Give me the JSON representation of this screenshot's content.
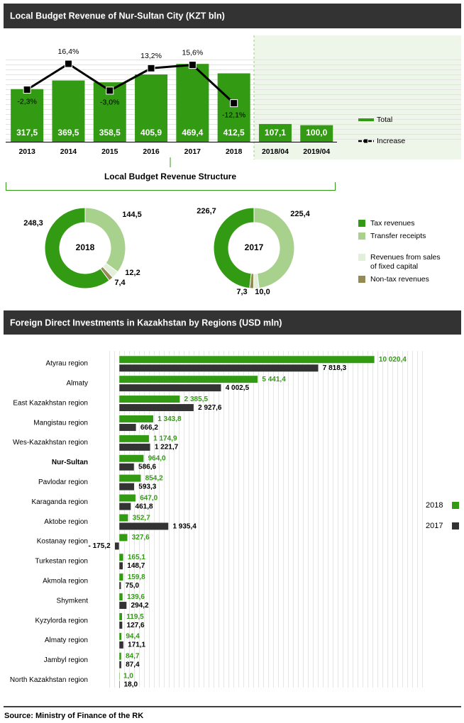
{
  "chart_data": [
    {
      "type": "bar_line",
      "title": "Local Budget Revenue of Nur-Sultan City (KZT  bln)",
      "categories": [
        "2013",
        "2014",
        "2015",
        "2016",
        "2017",
        "2018",
        "2018/04",
        "2019/04"
      ],
      "series": [
        {
          "name": "Total",
          "type": "bar",
          "color": "#339a14",
          "values": [
            317.5,
            369.5,
            358.5,
            405.9,
            469.4,
            412.5,
            107.1,
            100.0
          ],
          "value_labels": [
            "317,5",
            "369,5",
            "358,5",
            "405,9",
            "469,4",
            "412,5",
            "107,1",
            "100,0"
          ]
        },
        {
          "name": "Increase",
          "type": "line",
          "axis": "y2",
          "color": "#000000",
          "values": [
            -2.3,
            16.4,
            -3.0,
            13.2,
            15.6,
            -12.1,
            null,
            null
          ],
          "value_labels": [
            "-2,3%",
            "16,4%",
            "-3,0%",
            "13,2%",
            "15,6%",
            "-12,1%",
            null,
            null
          ]
        }
      ],
      "ylim": [
        0,
        500
      ],
      "y2lim": [
        -40,
        20
      ]
    },
    {
      "type": "donut",
      "title": "Local Budget Revenue Structure",
      "categories": [
        "Tax revenues",
        "Transfer receipts",
        "Revenues from sales of fixed capital",
        "Non-tax revenues"
      ],
      "colors": [
        "#339a14",
        "#a9d18e",
        "#e2efda",
        "#948a54"
      ],
      "series": [
        {
          "name": "2018",
          "values": [
            248.3,
            144.5,
            12.2,
            7.4
          ],
          "value_labels": [
            "248,3",
            "144,5",
            "12,2",
            "7,4"
          ]
        },
        {
          "name": "2017",
          "values": [
            226.7,
            225.4,
            10.0,
            7.3
          ],
          "value_labels": [
            "226,7",
            "225,4",
            "10,0",
            "7,3"
          ]
        }
      ]
    },
    {
      "type": "hbar",
      "title": "Foreign Direct Investments  in Kazakhstan by Regions (USD mln)",
      "categories": [
        "Atyrau region",
        "Almaty",
        "East Kazakhstan region",
        "Mangistau region",
        "Wes-Kazakhstan region",
        "Nur-Sultan",
        "Pavlodar region",
        "Karaganda region",
        "Aktobe region",
        "Kostanay region",
        "Turkestan region",
        "Akmola region",
        "Shymkent",
        "Kyzylorda region",
        "Almaty region",
        "Jambyl region",
        "North Kazakhstan region"
      ],
      "bold_category": "Nur-Sultan",
      "series": [
        {
          "name": "2018",
          "color": "#339a14",
          "values": [
            10020.4,
            5441.4,
            2385.5,
            1343.8,
            1174.9,
            964.0,
            854.2,
            647.0,
            352.7,
            327.6,
            165.1,
            159.8,
            139.6,
            119.5,
            94.4,
            84.7,
            1.0
          ],
          "value_labels": [
            "10 020,4",
            "5 441,4",
            "2 385,5",
            "1 343,8",
            "1 174,9",
            "964,0",
            "854,2",
            "647,0",
            "352,7",
            "327,6",
            "165,1",
            "159,8",
            "139,6",
            "119,5",
            "94,4",
            "84,7",
            "1,0"
          ]
        },
        {
          "name": "2017",
          "color": "#333333",
          "values": [
            7818.3,
            4002.5,
            2927.6,
            666.2,
            1221.7,
            586.6,
            593.3,
            461.8,
            1935.4,
            -175.2,
            148.7,
            75.0,
            294.2,
            127.6,
            171.1,
            87.4,
            18.0
          ],
          "value_labels": [
            "7 818,3",
            "4 002,5",
            "2 927,6",
            "666,2",
            "1 221,7",
            "586,6",
            "593,3",
            "461,8",
            "1 935,4",
            "- 175,2",
            "148,7",
            "75,0",
            "294,2",
            "127,6",
            "171,1",
            "87,4",
            "18,0"
          ]
        }
      ],
      "xlim": [
        -500,
        12000
      ]
    }
  ],
  "source": "Source: Ministry of Finance of the RK"
}
